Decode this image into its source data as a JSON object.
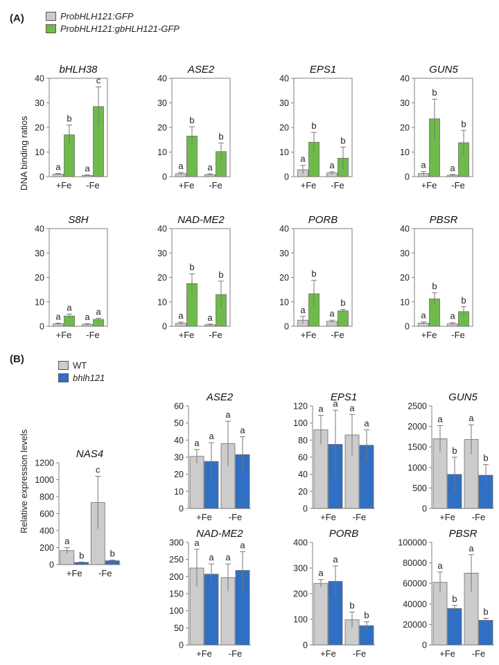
{
  "panel_a": {
    "label": "(A)",
    "legend": [
      {
        "name": "ProbHLH121:GFP",
        "color": "#cccccc"
      },
      {
        "name": "ProbHLH121:gbHLH121-GFP",
        "color": "#6fbb4a"
      }
    ],
    "ylabel": "DNA binding ratios"
  },
  "panel_b": {
    "label": "(B)",
    "legend": [
      {
        "name": "WT",
        "color": "#cccccc"
      },
      {
        "name": "bhlh121",
        "color": "#2f6fc4"
      }
    ],
    "ylabel": "Relative expression levels"
  },
  "chart_data": [
    {
      "panel": "A",
      "type": "bar",
      "title": "bHLH38",
      "categories": [
        "+Fe",
        "-Fe"
      ],
      "ylim": [
        0,
        40
      ],
      "yticks": [
        0,
        10,
        20,
        30,
        40
      ],
      "series": [
        {
          "name": "ProbHLH121:GFP",
          "values": [
            1.0,
            0.5
          ],
          "errors": [
            0.3,
            0.2
          ],
          "letters": [
            "a",
            "a"
          ]
        },
        {
          "name": "ProbHLH121:gbHLH121-GFP",
          "values": [
            17,
            28.5
          ],
          "errors": [
            4,
            8
          ],
          "letters": [
            "b",
            "c"
          ]
        }
      ]
    },
    {
      "panel": "A",
      "type": "bar",
      "title": "ASE2",
      "categories": [
        "+Fe",
        "-Fe"
      ],
      "ylim": [
        0,
        40
      ],
      "yticks": [
        0,
        10,
        20,
        30,
        40
      ],
      "series": [
        {
          "name": "ProbHLH121:GFP",
          "values": [
            1.2,
            0.8
          ],
          "errors": [
            0.5,
            0.3
          ],
          "letters": [
            "a",
            "a"
          ]
        },
        {
          "name": "ProbHLH121:gbHLH121-GFP",
          "values": [
            16.5,
            10.2
          ],
          "errors": [
            3.8,
            3.5
          ],
          "letters": [
            "b",
            "b"
          ]
        }
      ]
    },
    {
      "panel": "A",
      "type": "bar",
      "title": "EPS1",
      "categories": [
        "+Fe",
        "-Fe"
      ],
      "ylim": [
        0,
        40
      ],
      "yticks": [
        0,
        10,
        20,
        30,
        40
      ],
      "series": [
        {
          "name": "ProbHLH121:GFP",
          "values": [
            2.8,
            1.5
          ],
          "errors": [
            1.8,
            0.5
          ],
          "letters": [
            "a",
            "a"
          ]
        },
        {
          "name": "ProbHLH121:gbHLH121-GFP",
          "values": [
            14,
            7.5
          ],
          "errors": [
            4,
            4.5
          ],
          "letters": [
            "b",
            "b"
          ]
        }
      ]
    },
    {
      "panel": "A",
      "type": "bar",
      "title": "GUN5",
      "categories": [
        "+Fe",
        "-Fe"
      ],
      "ylim": [
        0,
        40
      ],
      "yticks": [
        0,
        10,
        20,
        30,
        40
      ],
      "series": [
        {
          "name": "ProbHLH121:GFP",
          "values": [
            1.3,
            0.6
          ],
          "errors": [
            0.8,
            0.3
          ],
          "letters": [
            "a",
            "a"
          ]
        },
        {
          "name": "ProbHLH121:gbHLH121-GFP",
          "values": [
            23.5,
            13.8
          ],
          "errors": [
            8,
            5
          ],
          "letters": [
            "b",
            "b"
          ]
        }
      ]
    },
    {
      "panel": "A",
      "type": "bar",
      "title": "S8H",
      "categories": [
        "+Fe",
        "-Fe"
      ],
      "ylim": [
        0,
        40
      ],
      "yticks": [
        0,
        10,
        20,
        30,
        40
      ],
      "series": [
        {
          "name": "ProbHLH121:GFP",
          "values": [
            1.0,
            0.8
          ],
          "errors": [
            0.3,
            0.3
          ],
          "letters": [
            "a",
            "a"
          ]
        },
        {
          "name": "ProbHLH121:gbHLH121-GFP",
          "values": [
            4.2,
            2.8
          ],
          "errors": [
            0.8,
            0.5
          ],
          "letters": [
            "a",
            "a"
          ]
        }
      ]
    },
    {
      "panel": "A",
      "type": "bar",
      "title": "NAD-ME2",
      "categories": [
        "+Fe",
        "-Fe"
      ],
      "ylim": [
        0,
        40
      ],
      "yticks": [
        0,
        10,
        20,
        30,
        40
      ],
      "series": [
        {
          "name": "ProbHLH121:GFP",
          "values": [
            1.2,
            0.6
          ],
          "errors": [
            0.5,
            0.3
          ],
          "letters": [
            "a",
            "a"
          ]
        },
        {
          "name": "ProbHLH121:gbHLH121-GFP",
          "values": [
            17.5,
            13
          ],
          "errors": [
            4,
            5.5
          ],
          "letters": [
            "b",
            "b"
          ]
        }
      ]
    },
    {
      "panel": "A",
      "type": "bar",
      "title": "PORB",
      "categories": [
        "+Fe",
        "-Fe"
      ],
      "ylim": [
        0,
        40
      ],
      "yticks": [
        0,
        10,
        20,
        30,
        40
      ],
      "series": [
        {
          "name": "ProbHLH121:GFP",
          "values": [
            2.5,
            2.0
          ],
          "errors": [
            1.5,
            0.5
          ],
          "letters": [
            "a",
            "a"
          ]
        },
        {
          "name": "ProbHLH121:gbHLH121-GFP",
          "values": [
            13.3,
            6.3
          ],
          "errors": [
            5.5,
            0.6
          ],
          "letters": [
            "b",
            "b"
          ]
        }
      ]
    },
    {
      "panel": "A",
      "type": "bar",
      "title": "PBSR",
      "categories": [
        "+Fe",
        "-Fe"
      ],
      "ylim": [
        0,
        40
      ],
      "yticks": [
        0,
        10,
        20,
        30,
        40
      ],
      "series": [
        {
          "name": "ProbHLH121:GFP",
          "values": [
            1.3,
            1.0
          ],
          "errors": [
            0.5,
            0.5
          ],
          "letters": [
            "a",
            "a"
          ]
        },
        {
          "name": "ProbHLH121:gbHLH121-GFP",
          "values": [
            11.2,
            6.0
          ],
          "errors": [
            2.5,
            2.0
          ],
          "letters": [
            "b",
            "b"
          ]
        }
      ]
    },
    {
      "panel": "B",
      "type": "bar",
      "title": "NAS4",
      "categories": [
        "+Fe",
        "-Fe"
      ],
      "ylim": [
        0,
        1200
      ],
      "yticks": [
        0,
        200,
        400,
        600,
        800,
        1000,
        1200
      ],
      "series": [
        {
          "name": "WT",
          "values": [
            165,
            730
          ],
          "errors": [
            35,
            310
          ],
          "letters": [
            "a",
            "c"
          ]
        },
        {
          "name": "bhlh121",
          "values": [
            25,
            45
          ],
          "errors": [
            5,
            8
          ],
          "letters": [
            "b",
            "b"
          ]
        }
      ]
    },
    {
      "panel": "B",
      "type": "bar",
      "title": "ASE2",
      "categories": [
        "+Fe",
        "-Fe"
      ],
      "ylim": [
        0,
        60
      ],
      "yticks": [
        0,
        10,
        20,
        30,
        40,
        50,
        60
      ],
      "series": [
        {
          "name": "WT",
          "values": [
            30.5,
            38
          ],
          "errors": [
            4,
            13
          ],
          "letters": [
            "a",
            "a"
          ]
        },
        {
          "name": "bhlh121",
          "values": [
            27.5,
            31.5
          ],
          "errors": [
            11,
            10.5
          ],
          "letters": [
            "a",
            "a"
          ]
        }
      ]
    },
    {
      "panel": "B",
      "type": "bar",
      "title": "EPS1",
      "categories": [
        "+Fe",
        "-Fe"
      ],
      "ylim": [
        0,
        120
      ],
      "yticks": [
        0,
        20,
        40,
        60,
        80,
        100,
        120
      ],
      "series": [
        {
          "name": "WT",
          "values": [
            92,
            86
          ],
          "errors": [
            17,
            24
          ],
          "letters": [
            "a",
            "a"
          ]
        },
        {
          "name": "bhlh121",
          "values": [
            75,
            74
          ],
          "errors": [
            40,
            18
          ],
          "letters": [
            "a",
            "a"
          ]
        }
      ]
    },
    {
      "panel": "B",
      "type": "bar",
      "title": "GUN5",
      "categories": [
        "+Fe",
        "-Fe"
      ],
      "ylim": [
        0,
        2500
      ],
      "yticks": [
        0,
        500,
        1000,
        1500,
        2000,
        2500
      ],
      "series": [
        {
          "name": "WT",
          "values": [
            1700,
            1680
          ],
          "errors": [
            320,
            360
          ],
          "letters": [
            "a",
            "a"
          ]
        },
        {
          "name": "bhlh121",
          "values": [
            830,
            810
          ],
          "errors": [
            420,
            260
          ],
          "letters": [
            "b",
            "b"
          ]
        }
      ]
    },
    {
      "panel": "B",
      "type": "bar",
      "title": "NAD-ME2",
      "categories": [
        "+Fe",
        "-Fe"
      ],
      "ylim": [
        0,
        300
      ],
      "yticks": [
        0,
        50,
        100,
        150,
        200,
        250,
        300
      ],
      "series": [
        {
          "name": "WT",
          "values": [
            225,
            197
          ],
          "errors": [
            55,
            40
          ],
          "letters": [
            "a",
            "a"
          ]
        },
        {
          "name": "bhlh121",
          "values": [
            207,
            218
          ],
          "errors": [
            30,
            55
          ],
          "letters": [
            "a",
            "a"
          ]
        }
      ]
    },
    {
      "panel": "B",
      "type": "bar",
      "title": "PORB",
      "categories": [
        "+Fe",
        "-Fe"
      ],
      "ylim": [
        0,
        400
      ],
      "yticks": [
        0,
        100,
        200,
        300,
        400
      ],
      "series": [
        {
          "name": "WT",
          "values": [
            240,
            98
          ],
          "errors": [
            15,
            30
          ],
          "letters": [
            "a",
            "b"
          ]
        },
        {
          "name": "bhlh121",
          "values": [
            248,
            75
          ],
          "errors": [
            60,
            15
          ],
          "letters": [
            "a",
            "b"
          ]
        }
      ]
    },
    {
      "panel": "B",
      "type": "bar",
      "title": "PBSR",
      "categories": [
        "+Fe",
        "-Fe"
      ],
      "ylim": [
        0,
        100000
      ],
      "yticks": [
        0,
        20000,
        40000,
        60000,
        80000,
        100000
      ],
      "series": [
        {
          "name": "WT",
          "values": [
            61000,
            70000
          ],
          "errors": [
            10000,
            18000
          ],
          "letters": [
            "a",
            "a"
          ]
        },
        {
          "name": "bhlh121",
          "values": [
            35500,
            24000
          ],
          "errors": [
            3000,
            2000
          ],
          "letters": [
            "b",
            "b"
          ]
        }
      ]
    }
  ]
}
